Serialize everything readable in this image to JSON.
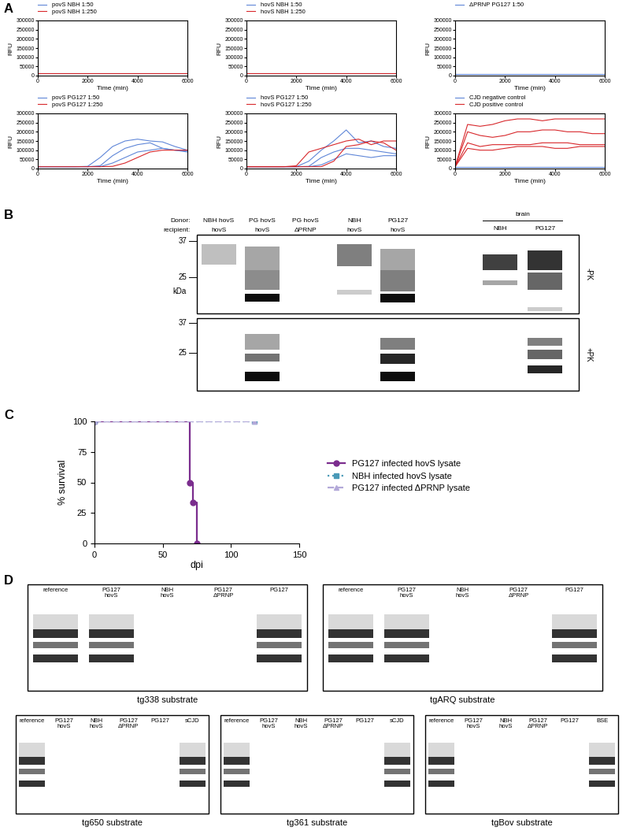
{
  "panel_letters": [
    "A",
    "B",
    "C",
    "D"
  ],
  "chart_data": [
    {
      "type": "line",
      "x_label": "Time (min)",
      "y_label": "RFU",
      "x": [
        0,
        500,
        1000,
        1500,
        2000,
        2500,
        3000,
        3500,
        4000,
        4500,
        5000,
        5500,
        6000
      ],
      "xlim": [
        0,
        6000
      ],
      "xticks": [
        0,
        2000,
        4000,
        6000
      ],
      "ylim": [
        0,
        300000
      ],
      "yticks": [
        0,
        50000,
        100000,
        150000,
        200000,
        250000,
        300000
      ],
      "legend": "upper left",
      "series": [
        {
          "name": "povS NBH 1:50",
          "color": "#5f86d8",
          "values": [
            [
              12000,
              12000,
              12000,
              12000,
              12000,
              12000,
              12000,
              12000,
              12000,
              12000,
              12000,
              12000,
              12000
            ]
          ]
        },
        {
          "name": "povS NBH 1:250",
          "color": "#d8282c",
          "values": [
            [
              13000,
              13000,
              13000,
              13000,
              13000,
              13000,
              13000,
              13000,
              13000,
              13000,
              13000,
              13000,
              13000
            ]
          ]
        }
      ]
    },
    {
      "type": "line",
      "x_label": "Time (min)",
      "y_label": "RFU",
      "x": [
        0,
        500,
        1000,
        1500,
        2000,
        2500,
        3000,
        3500,
        4000,
        4500,
        5000,
        5500,
        6000
      ],
      "xlim": [
        0,
        6000
      ],
      "xticks": [
        0,
        2000,
        4000,
        6000
      ],
      "ylim": [
        0,
        300000
      ],
      "yticks": [
        0,
        50000,
        100000,
        150000,
        200000,
        250000,
        300000
      ],
      "legend": "upper left",
      "series": [
        {
          "name": "hovS NBH 1:50",
          "color": "#5f86d8",
          "values": [
            [
              12000,
              12000,
              12000,
              12000,
              12000,
              12000,
              12000,
              12000,
              12000,
              12000,
              12000,
              12000,
              12000
            ]
          ]
        },
        {
          "name": "hovS NBH 1:250",
          "color": "#d8282c",
          "values": [
            [
              13000,
              13000,
              13000,
              13000,
              13000,
              13000,
              13000,
              13000,
              13000,
              13000,
              13000,
              13000,
              13000
            ]
          ]
        }
      ]
    },
    {
      "type": "line",
      "x_label": "Time (min)",
      "y_label": "RFU",
      "x": [
        0,
        500,
        1000,
        1500,
        2000,
        2500,
        3000,
        3500,
        4000,
        4500,
        5000,
        5500,
        6000
      ],
      "xlim": [
        0,
        6000
      ],
      "xticks": [
        0,
        2000,
        4000,
        6000
      ],
      "ylim": [
        0,
        300000
      ],
      "yticks": [
        0,
        50000,
        100000,
        150000,
        200000,
        250000,
        300000
      ],
      "legend": "upper left",
      "series": [
        {
          "name": "ΔPRNP PG127 1:50",
          "color": "#5f86d8",
          "values": [
            [
              10000,
              10000,
              10000,
              10000,
              10000,
              10000,
              10000,
              10000,
              10000,
              10000,
              10000,
              10000,
              10000
            ]
          ]
        }
      ]
    },
    {
      "type": "line",
      "x_label": "Time (min)",
      "y_label": "RFU",
      "x": [
        0,
        500,
        1000,
        1500,
        2000,
        2500,
        3000,
        3500,
        4000,
        4500,
        5000,
        5500,
        6000
      ],
      "xlim": [
        0,
        6000
      ],
      "xticks": [
        0,
        2000,
        4000,
        6000
      ],
      "ylim": [
        0,
        300000
      ],
      "yticks": [
        0,
        50000,
        100000,
        150000,
        200000,
        250000,
        300000
      ],
      "legend": "upper left",
      "series": [
        {
          "name": "povS PG127 1:50",
          "color": "#5f86d8",
          "values": [
            [
              10000,
              10000,
              10000,
              10000,
              12000,
              60000,
              120000,
              150000,
              160000,
              150000,
              145000,
              120000,
              100000
            ],
            [
              10000,
              10000,
              10000,
              10000,
              10000,
              15000,
              70000,
              110000,
              130000,
              140000,
              110000,
              100000,
              90000
            ],
            [
              10000,
              10000,
              10000,
              10000,
              10000,
              10000,
              30000,
              60000,
              90000,
              100000,
              110000,
              100000,
              95000
            ]
          ]
        },
        {
          "name": "povS PG127 1:250",
          "color": "#d8282c",
          "values": [
            [
              10000,
              10000,
              10000,
              10000,
              10000,
              10000,
              12000,
              30000,
              60000,
              90000,
              100000,
              100000,
              100000
            ]
          ]
        }
      ]
    },
    {
      "type": "line",
      "x_label": "Time (min)",
      "y_label": "RFU",
      "x": [
        0,
        500,
        1000,
        1500,
        2000,
        2500,
        3000,
        3500,
        4000,
        4500,
        5000,
        5500,
        6000
      ],
      "xlim": [
        0,
        6000
      ],
      "xticks": [
        0,
        2000,
        4000,
        6000
      ],
      "ylim": [
        0,
        300000
      ],
      "yticks": [
        0,
        50000,
        100000,
        150000,
        200000,
        250000,
        300000
      ],
      "legend": "upper left",
      "series": [
        {
          "name": "hovS PG127 1:50",
          "color": "#5f86d8",
          "values": [
            [
              10000,
              10000,
              10000,
              10000,
              10000,
              40000,
              100000,
              150000,
              210000,
              140000,
              150000,
              120000,
              110000
            ],
            [
              10000,
              10000,
              10000,
              10000,
              10000,
              12000,
              60000,
              90000,
              110000,
              110000,
              100000,
              90000,
              80000
            ],
            [
              10000,
              10000,
              10000,
              10000,
              10000,
              10000,
              20000,
              50000,
              80000,
              70000,
              60000,
              70000,
              70000
            ]
          ]
        },
        {
          "name": "hovS PG127 1:250",
          "color": "#d8282c",
          "values": [
            [
              10000,
              10000,
              10000,
              10000,
              15000,
              90000,
              110000,
              130000,
              150000,
              160000,
              130000,
              150000,
              150000
            ],
            [
              10000,
              10000,
              10000,
              10000,
              10000,
              10000,
              10000,
              40000,
              120000,
              130000,
              150000,
              140000,
              100000
            ]
          ]
        }
      ]
    },
    {
      "type": "line",
      "x_label": "Time (min)",
      "y_label": "RFU",
      "x": [
        0,
        500,
        1000,
        1500,
        2000,
        2500,
        3000,
        3500,
        4000,
        4500,
        5000,
        5500,
        6000
      ],
      "xlim": [
        0,
        6000
      ],
      "xticks": [
        0,
        2000,
        4000,
        6000
      ],
      "ylim": [
        0,
        300000
      ],
      "yticks": [
        0,
        50000,
        100000,
        150000,
        200000,
        250000,
        300000
      ],
      "legend": "upper left",
      "series": [
        {
          "name": "CJD negative control",
          "color": "#5f86d8",
          "values": [
            [
              10000,
              10000,
              10000,
              10000,
              10000,
              10000,
              10000,
              10000,
              10000,
              10000,
              10000,
              10000,
              10000
            ]
          ]
        },
        {
          "name": "CJD positive control",
          "color": "#d8282c",
          "values": [
            [
              10000,
              240000,
              230000,
              240000,
              260000,
              270000,
              270000,
              260000,
              270000,
              270000,
              270000,
              270000,
              270000
            ],
            [
              10000,
              200000,
              180000,
              170000,
              180000,
              200000,
              200000,
              210000,
              210000,
              200000,
              200000,
              190000,
              190000
            ],
            [
              10000,
              140000,
              120000,
              130000,
              130000,
              130000,
              130000,
              140000,
              140000,
              140000,
              130000,
              130000,
              130000
            ],
            [
              10000,
              110000,
              100000,
              100000,
              110000,
              120000,
              120000,
              120000,
              110000,
              110000,
              120000,
              120000,
              120000
            ]
          ]
        }
      ]
    },
    {
      "type": "step",
      "x_label": "dpi",
      "y_label": "% survival",
      "xlim": [
        0,
        150
      ],
      "xticks": [
        0,
        50,
        100,
        150
      ],
      "ylim": [
        0,
        100
      ],
      "yticks": [
        0,
        25,
        50,
        75,
        100
      ],
      "legend": "center left",
      "series": [
        {
          "name": "PG127 infected hovS lysate",
          "color": "#7b2d8e",
          "marker": "circle",
          "line_style": "solid",
          "x": [
            0,
            70,
            72,
            75
          ],
          "values": [
            100,
            50,
            33.3,
            0
          ]
        },
        {
          "name": "NBH infected hovS lysate",
          "color": "#4a9ab8",
          "marker": "square",
          "line_style": "dotted",
          "x": [
            0,
            117
          ],
          "values": [
            100,
            100
          ]
        },
        {
          "name": "PG127 infected ΔPRNP lysate",
          "color": "#b3a9d9",
          "marker": "triangle",
          "line_style": "dashed",
          "x": [
            0,
            117
          ],
          "values": [
            100,
            100
          ]
        }
      ]
    }
  ],
  "blot_B": {
    "donor_label": "Donor:",
    "recipient_label": "recipient:",
    "lanes": [
      {
        "donor": "NBH hovS",
        "recipient": "hovS"
      },
      {
        "donor": "PG hovS",
        "recipient": "hovS"
      },
      {
        "donor": "PG hovS",
        "recipient": "ΔPRNP"
      },
      {
        "donor": "NBH",
        "recipient": "hovS"
      },
      {
        "donor": "PG127",
        "recipient": "hovS"
      }
    ],
    "brain": {
      "label": "brain",
      "lanes": [
        "NBH",
        "PG127"
      ]
    },
    "strips": [
      {
        "label": "-PK",
        "markers": [
          37,
          25
        ],
        "unit": "kDa"
      },
      {
        "label": "+PK",
        "markers": [
          37,
          25
        ]
      }
    ]
  },
  "blots_D": [
    {
      "caption": "tg338 substrate",
      "lanes": [
        {
          "label": "reference",
          "signal": true
        },
        {
          "label": "PG127 hovS",
          "signal": true
        },
        {
          "label": "NBH hovS",
          "signal": false
        },
        {
          "label": "PG127 ΔPRNP",
          "signal": false
        },
        {
          "label": "PG127",
          "signal": true
        }
      ]
    },
    {
      "caption": "tgARQ substrate",
      "lanes": [
        {
          "label": "reference",
          "signal": true
        },
        {
          "label": "PG127 hovS",
          "signal": true
        },
        {
          "label": "NBH hovS",
          "signal": false
        },
        {
          "label": "PG127 ΔPRNP",
          "signal": false
        },
        {
          "label": "PG127",
          "signal": true
        }
      ]
    },
    {
      "caption": "tg650 substrate",
      "lanes": [
        {
          "label": "reference",
          "signal": true
        },
        {
          "label": "PG127 hovS",
          "signal": false
        },
        {
          "label": "NBH hovS",
          "signal": false
        },
        {
          "label": "PG127 ΔPRNP",
          "signal": false
        },
        {
          "label": "PG127",
          "signal": false
        },
        {
          "label": "sCJD",
          "signal": true
        }
      ]
    },
    {
      "caption": "tg361 substrate",
      "lanes": [
        {
          "label": "reference",
          "signal": true
        },
        {
          "label": "PG127 hovS",
          "signal": false
        },
        {
          "label": "NBH hovS",
          "signal": false
        },
        {
          "label": "PG127 ΔPRNP",
          "signal": false
        },
        {
          "label": "PG127",
          "signal": false
        },
        {
          "label": "sCJD",
          "signal": true
        }
      ]
    },
    {
      "caption": "tgBov substrate",
      "lanes": [
        {
          "label": "reference",
          "signal": true
        },
        {
          "label": "PG127 hovS",
          "signal": false
        },
        {
          "label": "NBH hovS",
          "signal": false
        },
        {
          "label": "PG127 ΔPRNP",
          "signal": false
        },
        {
          "label": "PG127",
          "signal": false
        },
        {
          "label": "BSE",
          "signal": true
        }
      ]
    }
  ]
}
